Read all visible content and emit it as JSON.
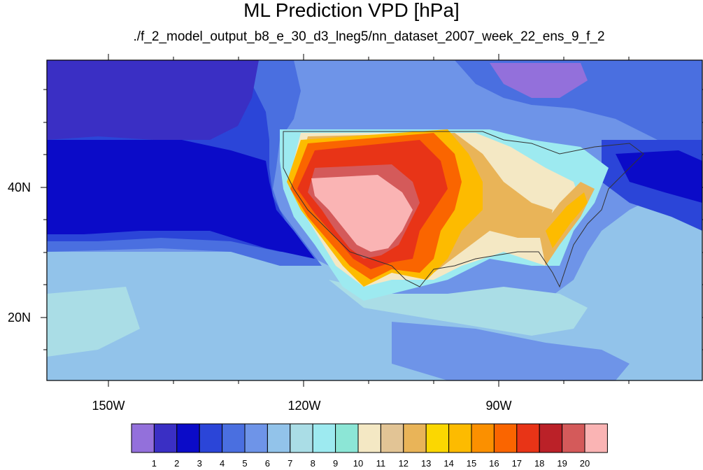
{
  "title": "ML Prediction VPD [hPa]",
  "subtitle": "./f_2_model_output_b8_e_30_d3_lneg5/nn_dataset_2007_week_22_ens_9_f_2",
  "axes": {
    "lat_labels": [
      "40N",
      "20N"
    ],
    "lon_labels": [
      "150W",
      "120W",
      "90W"
    ]
  },
  "legend": {
    "labels": [
      "1",
      "2",
      "3",
      "4",
      "5",
      "6",
      "7",
      "8",
      "9",
      "10",
      "11",
      "12",
      "13",
      "14",
      "15",
      "16",
      "17",
      "18",
      "19",
      "20"
    ],
    "colors": [
      "#9370db",
      "#3a2fc4",
      "#0b0bc8",
      "#2b45d8",
      "#4a6fe0",
      "#6e94e8",
      "#92c3ea",
      "#aadde6",
      "#9deaf0",
      "#8ce6d6",
      "#f4e8c4",
      "#e2c495",
      "#e9b458",
      "#fbd701",
      "#fdbb00",
      "#fb9000",
      "#fa6500",
      "#e83417",
      "#bb2128",
      "#d45a5a",
      "#fab4b4"
    ]
  },
  "map": {
    "extent": {
      "lon_min": -160,
      "lon_max": -62,
      "lat_min": 10,
      "lat_max": 60
    },
    "background_color": "#92c3ea"
  }
}
